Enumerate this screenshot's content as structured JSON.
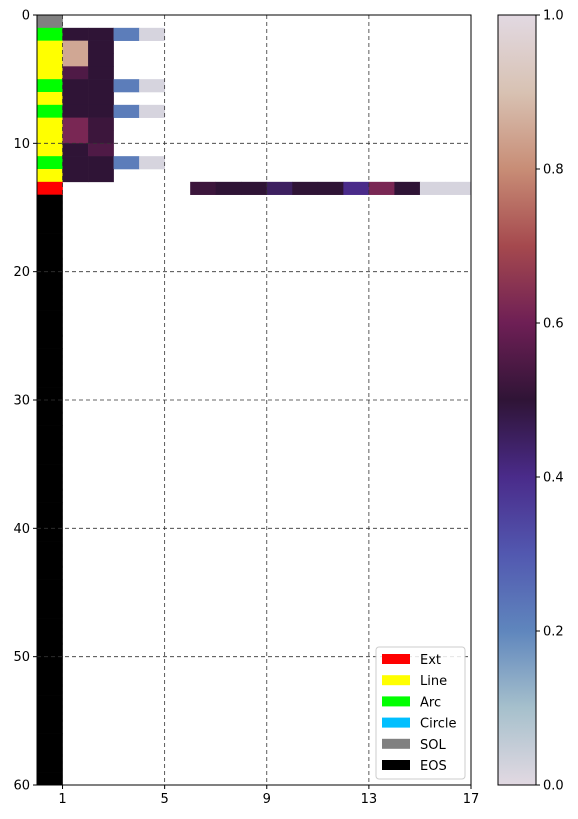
{
  "chart_data": [
    {
      "type": "heatmap",
      "xlim": [
        0,
        17
      ],
      "ylim": [
        60,
        0
      ],
      "x_ticks": [
        1,
        5,
        9,
        13,
        17
      ],
      "y_ticks": [
        0,
        10,
        20,
        30,
        40,
        50,
        60
      ],
      "grid": true,
      "grid_style": "dashed",
      "row_count": 60,
      "token_colors": {
        "Ext": "#ff0000",
        "Line": "#ffff00",
        "Arc": "#00ff00",
        "Circle": "#00bfff",
        "SOL": "#808080",
        "EOS": "#000000"
      },
      "token_rows": [
        "SOL",
        "Arc",
        "Line",
        "Line",
        "Line",
        "Arc",
        "Line",
        "Arc",
        "Line",
        "Line",
        "Line",
        "Arc",
        "Line",
        "Ext",
        "EOS",
        "EOS",
        "EOS",
        "EOS",
        "EOS",
        "EOS",
        "EOS",
        "EOS",
        "EOS",
        "EOS",
        "EOS",
        "EOS",
        "EOS",
        "EOS",
        "EOS",
        "EOS",
        "EOS",
        "EOS",
        "EOS",
        "EOS",
        "EOS",
        "EOS",
        "EOS",
        "EOS",
        "EOS",
        "EOS",
        "EOS",
        "EOS",
        "EOS",
        "EOS",
        "EOS",
        "EOS",
        "EOS",
        "EOS",
        "EOS",
        "EOS",
        "EOS",
        "EOS",
        "EOS",
        "EOS",
        "EOS",
        "EOS",
        "EOS",
        "EOS",
        "EOS",
        "EOS"
      ],
      "cell_rows": [
        {
          "row": 1,
          "x_start": 1,
          "values": [
            0.5,
            0.5,
            0.22,
            0.02
          ]
        },
        {
          "row": 2,
          "x_start": 1,
          "values": [
            0.85,
            0.5
          ]
        },
        {
          "row": 3,
          "x_start": 1,
          "values": [
            0.85,
            0.5
          ]
        },
        {
          "row": 4,
          "x_start": 1,
          "values": [
            0.55,
            0.5
          ]
        },
        {
          "row": 5,
          "x_start": 1,
          "values": [
            0.5,
            0.5,
            0.22,
            0.02
          ]
        },
        {
          "row": 6,
          "x_start": 1,
          "values": [
            0.5,
            0.5
          ]
        },
        {
          "row": 7,
          "x_start": 1,
          "values": [
            0.5,
            0.5,
            0.22,
            0.02
          ]
        },
        {
          "row": 8,
          "x_start": 1,
          "values": [
            0.62,
            0.52
          ]
        },
        {
          "row": 9,
          "x_start": 1,
          "values": [
            0.62,
            0.52
          ]
        },
        {
          "row": 10,
          "x_start": 1,
          "values": [
            0.5,
            0.55
          ]
        },
        {
          "row": 11,
          "x_start": 1,
          "values": [
            0.5,
            0.5,
            0.22,
            0.02
          ]
        },
        {
          "row": 12,
          "x_start": 1,
          "values": [
            0.5,
            0.5
          ]
        },
        {
          "row": 13,
          "x_start": 6,
          "values": [
            0.52,
            0.5,
            0.5,
            0.45,
            0.5,
            0.5,
            0.4,
            0.62,
            0.5,
            0.02,
            0.02
          ]
        }
      ],
      "legend": {
        "placement": "lower-right",
        "entries": [
          {
            "label": "Ext",
            "color": "#ff0000"
          },
          {
            "label": "Line",
            "color": "#ffff00"
          },
          {
            "label": "Arc",
            "color": "#00ff00"
          },
          {
            "label": "Circle",
            "color": "#00bfff"
          },
          {
            "label": "SOL",
            "color": "#808080"
          },
          {
            "label": "EOS",
            "color": "#000000"
          }
        ]
      }
    },
    {
      "type": "colorbar",
      "colormap": "twilight",
      "ylim": [
        0,
        1
      ],
      "ticks": [
        "0.0",
        "0.2",
        "0.4",
        "0.6",
        "0.8",
        "1.0"
      ]
    }
  ]
}
